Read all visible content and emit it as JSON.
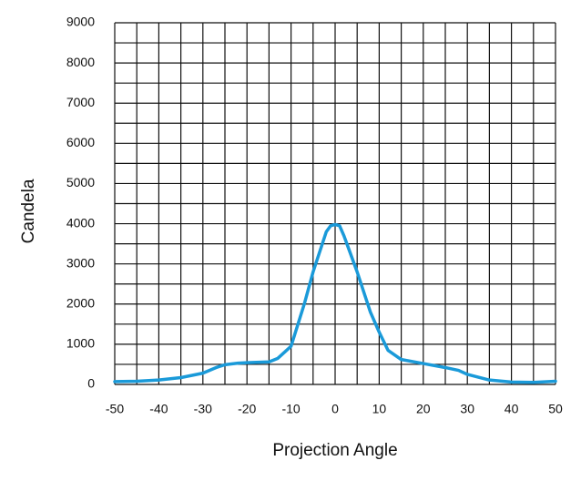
{
  "chart_data": {
    "type": "line",
    "x_label": "Projection Angle",
    "y_label": "Candela",
    "xlim": [
      -50,
      50
    ],
    "ylim": [
      0,
      9000
    ],
    "xticks": [
      -50,
      -40,
      -30,
      -20,
      -10,
      0,
      10,
      20,
      30,
      40,
      50
    ],
    "yticks": [
      0,
      1000,
      2000,
      3000,
      4000,
      5000,
      6000,
      7000,
      8000,
      9000
    ],
    "x_minor_grid": [
      -45,
      -35,
      -25,
      -15,
      -5,
      5,
      15,
      25,
      35,
      45
    ],
    "y_minor_grid": [
      500,
      1500,
      2500,
      3500,
      4500,
      5500,
      6500,
      7500,
      8500
    ],
    "grid": true,
    "series": [
      {
        "color": "#1a9ad9",
        "x": [
          -50,
          -45,
          -40,
          -35,
          -30,
          -27,
          -25,
          -22,
          -20,
          -15,
          -13,
          -10,
          -7,
          -5,
          -2,
          -1,
          0,
          1,
          2,
          5,
          8,
          10,
          12,
          15,
          20,
          25,
          28,
          30,
          35,
          40,
          45,
          50
        ],
        "values": [
          70,
          80,
          110,
          170,
          280,
          420,
          490,
          530,
          540,
          560,
          650,
          950,
          2000,
          2800,
          3800,
          3950,
          3980,
          3950,
          3700,
          2800,
          1800,
          1300,
          850,
          620,
          520,
          420,
          350,
          250,
          110,
          60,
          50,
          80
        ]
      }
    ]
  }
}
